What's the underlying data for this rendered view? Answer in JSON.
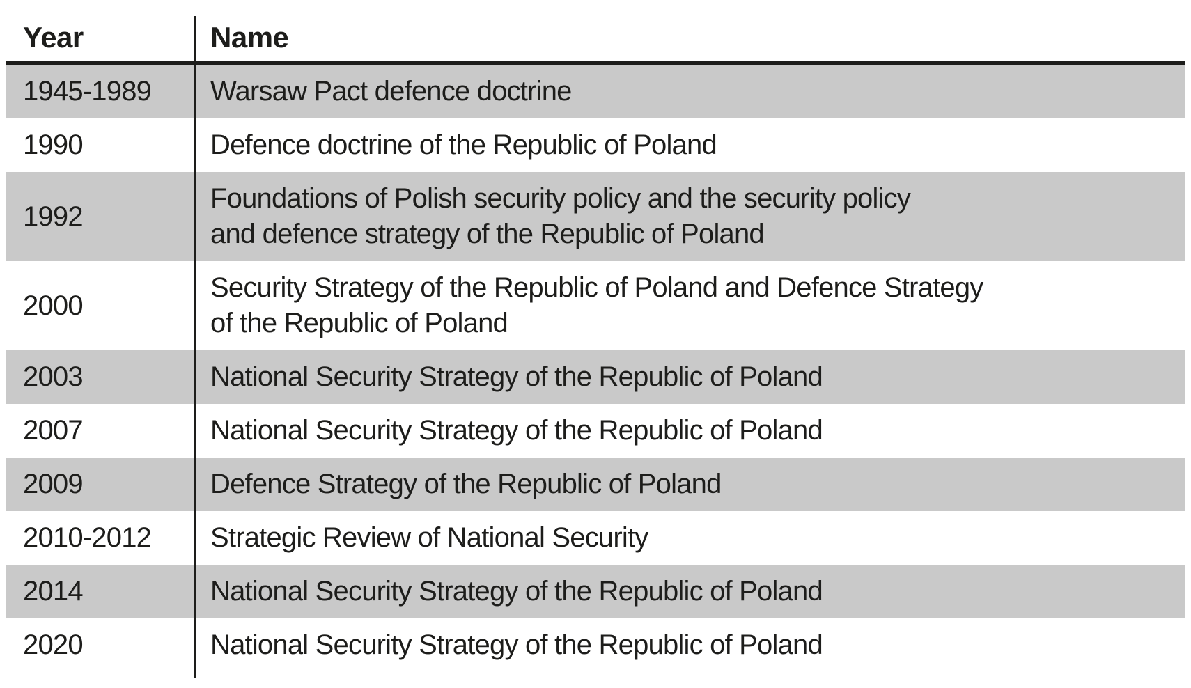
{
  "table": {
    "columns": [
      {
        "key": "year",
        "label": "Year"
      },
      {
        "key": "name",
        "label": "Name"
      }
    ],
    "rows": [
      {
        "year": "1945-1989",
        "name_lines": [
          "Warsaw Pact defence doctrine"
        ]
      },
      {
        "year": "1990",
        "name_lines": [
          "Defence doctrine of the Republic of Poland"
        ]
      },
      {
        "year": "1992",
        "name_lines": [
          "Foundations of Polish security policy and the security policy",
          "and defence strategy of the Republic of Poland"
        ]
      },
      {
        "year": "2000",
        "name_lines": [
          "Security Strategy of the Republic of Poland and Defence Strategy",
          "of the Republic of Poland"
        ]
      },
      {
        "year": "2003",
        "name_lines": [
          "National Security Strategy of the Republic of Poland"
        ]
      },
      {
        "year": "2007",
        "name_lines": [
          "National Security Strategy of the Republic of Poland"
        ]
      },
      {
        "year": "2009",
        "name_lines": [
          "Defence Strategy of the Republic of Poland"
        ]
      },
      {
        "year": "2010-2012",
        "name_lines": [
          "Strategic Review of National Security"
        ]
      },
      {
        "year": "2014",
        "name_lines": [
          "National Security Strategy of the Republic of Poland"
        ]
      },
      {
        "year": "2020",
        "name_lines": [
          "National Security Strategy of the Republic of Poland"
        ]
      }
    ],
    "colors": {
      "shaded_row": "#c9c9c9",
      "text": "#1d1d1b",
      "rule": "#1d1d1b",
      "background": "#ffffff"
    }
  }
}
